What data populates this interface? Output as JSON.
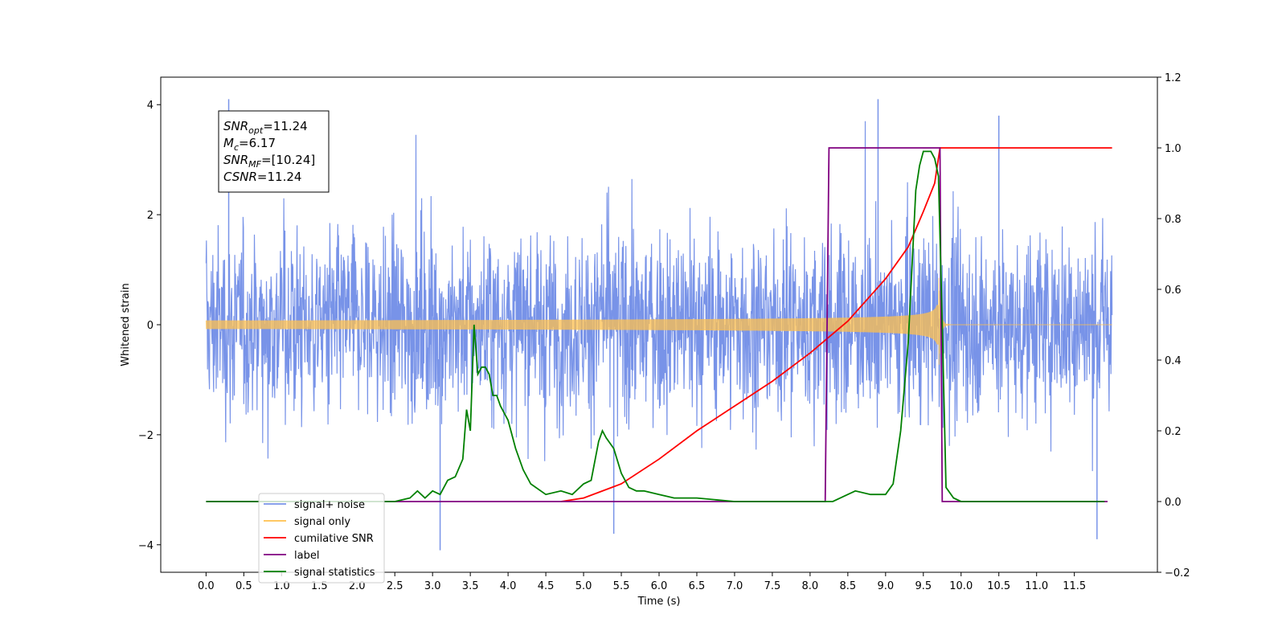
{
  "chart_data": {
    "type": "line",
    "xlabel": "Time (s)",
    "ylabel": "Whitened strain",
    "xlim": [
      -0.6,
      12.6
    ],
    "ylim_left": [
      -4.5,
      4.5
    ],
    "ylim_right": [
      -0.2,
      1.2
    ],
    "x_ticks": [
      "0.0",
      "0.5",
      "1.0",
      "1.5",
      "2.0",
      "2.5",
      "3.0",
      "3.5",
      "4.0",
      "4.5",
      "5.0",
      "5.5",
      "6.0",
      "6.5",
      "7.0",
      "7.5",
      "8.0",
      "8.5",
      "9.0",
      "9.5",
      "10.0",
      "10.5",
      "11.0",
      "11.5"
    ],
    "y_ticks_left": [
      "−4",
      "−2",
      "0",
      "2",
      "4"
    ],
    "y_ticks_right": [
      "−0.2",
      "0.0",
      "0.2",
      "0.4",
      "0.6",
      "0.8",
      "1.0",
      "1.2"
    ],
    "annotation": {
      "lines": [
        {
          "base": "SNR",
          "sub": "opt",
          "rest": "=11.24"
        },
        {
          "base": "M",
          "sub": "c",
          "rest": "=6.17"
        },
        {
          "base": "SNR",
          "sub": "MF",
          "rest": "=[10.24]"
        },
        {
          "base": "CSNR",
          "sub": "",
          "rest": "=11.24"
        }
      ]
    },
    "legend": {
      "placement": "lower-left",
      "entries": [
        {
          "label": "signal+ noise",
          "color": "#7893e8"
        },
        {
          "label": "signal only",
          "color": "#ffc04d"
        },
        {
          "label": "cumilative SNR",
          "color": "#ff0000"
        },
        {
          "label": "label",
          "color": "#800080"
        },
        {
          "label": "signal statistics",
          "color": "#008000"
        }
      ]
    },
    "series": [
      {
        "name": "signal+ noise",
        "axis": "left",
        "color": "#7893e8",
        "description_of_shape": "noisy whitened strain between about -3.5 and 4",
        "x_range": [
          0,
          12
        ],
        "sample_extremes": [
          {
            "x": 0.3,
            "y": 4.1
          },
          {
            "x": 3.1,
            "y": -4.1
          },
          {
            "x": 8.9,
            "y": 4.1
          },
          {
            "x": 10.5,
            "y": 3.8
          },
          {
            "x": 11.8,
            "y": -3.9
          },
          {
            "x": 5.4,
            "y": -3.8
          }
        ]
      },
      {
        "name": "signal only",
        "axis": "left",
        "color": "#ffc04d",
        "chirp": {
          "t_merge": 9.7,
          "amplitude_at_merge": 1.0,
          "x_range": [
            0,
            12
          ]
        }
      },
      {
        "name": "cumilative SNR",
        "axis": "right",
        "color": "#ff0000",
        "x": [
          4.7,
          5.0,
          5.5,
          6.0,
          6.5,
          7.0,
          7.5,
          8.0,
          8.5,
          9.0,
          9.3,
          9.5,
          9.65,
          9.72,
          11.0,
          12.0
        ],
        "values": [
          0.0,
          0.01,
          0.05,
          0.12,
          0.2,
          0.27,
          0.34,
          0.42,
          0.51,
          0.63,
          0.72,
          0.82,
          0.9,
          1.0,
          1.0,
          1.0
        ]
      },
      {
        "name": "label",
        "axis": "right",
        "color": "#800080",
        "x": [
          0.0,
          8.2,
          8.25,
          9.72,
          9.75,
          11.94
        ],
        "values": [
          0.0,
          0.0,
          1.0,
          1.0,
          0.0,
          0.0
        ]
      },
      {
        "name": "signal statistics",
        "axis": "right",
        "color": "#008000",
        "x": [
          0.0,
          2.5,
          2.7,
          2.8,
          2.9,
          3.0,
          3.1,
          3.2,
          3.3,
          3.4,
          3.45,
          3.5,
          3.55,
          3.6,
          3.65,
          3.7,
          3.75,
          3.8,
          3.85,
          3.9,
          4.0,
          4.1,
          4.2,
          4.3,
          4.5,
          4.7,
          4.85,
          5.0,
          5.1,
          5.2,
          5.25,
          5.3,
          5.4,
          5.5,
          5.6,
          5.7,
          5.8,
          6.0,
          6.2,
          6.5,
          7.0,
          7.5,
          8.0,
          8.3,
          8.5,
          8.6,
          8.8,
          9.0,
          9.1,
          9.2,
          9.3,
          9.4,
          9.45,
          9.5,
          9.55,
          9.6,
          9.65,
          9.7,
          9.75,
          9.8,
          9.9,
          10.0,
          11.0,
          11.9
        ],
        "values": [
          0.0,
          0.0,
          0.01,
          0.03,
          0.01,
          0.03,
          0.02,
          0.06,
          0.07,
          0.12,
          0.26,
          0.2,
          0.5,
          0.36,
          0.38,
          0.38,
          0.36,
          0.3,
          0.3,
          0.27,
          0.23,
          0.15,
          0.09,
          0.05,
          0.02,
          0.03,
          0.02,
          0.05,
          0.06,
          0.17,
          0.2,
          0.18,
          0.15,
          0.08,
          0.04,
          0.03,
          0.03,
          0.02,
          0.01,
          0.01,
          0.0,
          0.0,
          0.0,
          0.0,
          0.02,
          0.03,
          0.02,
          0.02,
          0.05,
          0.2,
          0.45,
          0.88,
          0.95,
          0.99,
          0.99,
          0.99,
          0.97,
          0.92,
          0.5,
          0.04,
          0.01,
          0.0,
          0.0,
          0.0
        ]
      }
    ]
  }
}
